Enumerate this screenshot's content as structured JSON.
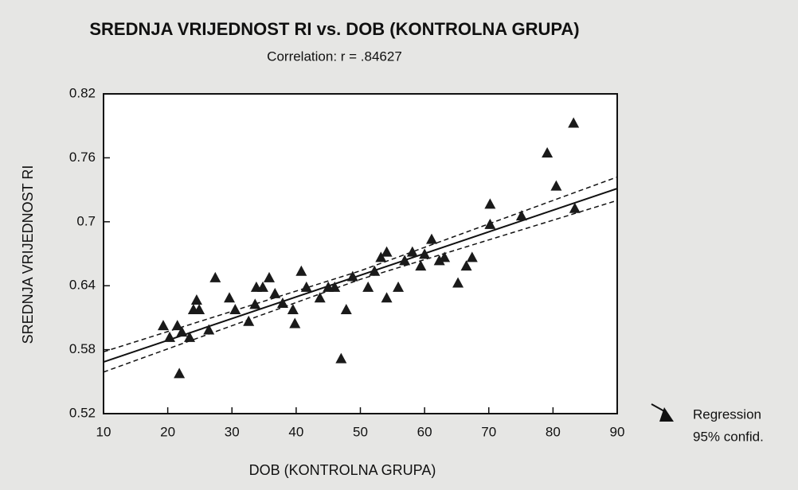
{
  "chart_data": {
    "type": "scatter",
    "title": "SREDNJA VRIJEDNOST RI vs. DOB (KONTROLNA GRUPA)",
    "subtitle": "Correlation: r = .84627",
    "xlabel": "DOB (KONTROLNA GRUPA)",
    "ylabel": "SREDNJA VRIJEDNOST RI",
    "color": "#1a1a1a",
    "x": [
      19.3,
      20.3,
      21.5,
      21.8,
      22.2,
      23.4,
      24.0,
      24.5,
      24.9,
      26.4,
      27.4,
      29.6,
      30.5,
      32.6,
      33.6,
      33.8,
      34.8,
      35.8,
      36.7,
      37.9,
      39.5,
      39.8,
      40.8,
      41.6,
      43.7,
      45.0,
      46.0,
      47.0,
      47.8,
      48.8,
      51.2,
      52.2,
      53.2,
      54.1,
      54.1,
      55.9,
      56.9,
      58.1,
      59.4,
      60.0,
      61.1,
      62.3,
      63.1,
      65.2,
      66.5,
      67.4,
      70.2,
      70.2,
      75.1,
      79.1,
      80.5,
      83.2,
      83.4
    ],
    "y": [
      0.602,
      0.591,
      0.602,
      0.557,
      0.596,
      0.591,
      0.617,
      0.626,
      0.617,
      0.598,
      0.647,
      0.628,
      0.617,
      0.606,
      0.622,
      0.638,
      0.638,
      0.647,
      0.632,
      0.623,
      0.617,
      0.604,
      0.653,
      0.638,
      0.628,
      0.638,
      0.638,
      0.571,
      0.617,
      0.648,
      0.638,
      0.653,
      0.666,
      0.671,
      0.628,
      0.638,
      0.663,
      0.671,
      0.658,
      0.669,
      0.683,
      0.663,
      0.666,
      0.642,
      0.658,
      0.666,
      0.716,
      0.697,
      0.705,
      0.764,
      0.733,
      0.792,
      0.712
    ],
    "regression": {
      "x": [
        10,
        90
      ],
      "y": [
        0.5685,
        0.7312
      ]
    },
    "confidence_upper": {
      "x": [
        10,
        50,
        90
      ],
      "y": [
        0.578,
        0.654,
        0.742
      ]
    },
    "confidence_lower": {
      "x": [
        10,
        50,
        90
      ],
      "y": [
        0.559,
        0.646,
        0.72
      ]
    },
    "legend": [
      "Regression",
      "95% confid."
    ],
    "xlim": [
      10,
      90
    ],
    "xticks": [
      10,
      20,
      30,
      40,
      50,
      60,
      70,
      80,
      90
    ],
    "ylim": [
      0.52,
      0.82
    ],
    "yticks": [
      0.52,
      0.58,
      0.64,
      0.7,
      0.76,
      0.82
    ]
  }
}
